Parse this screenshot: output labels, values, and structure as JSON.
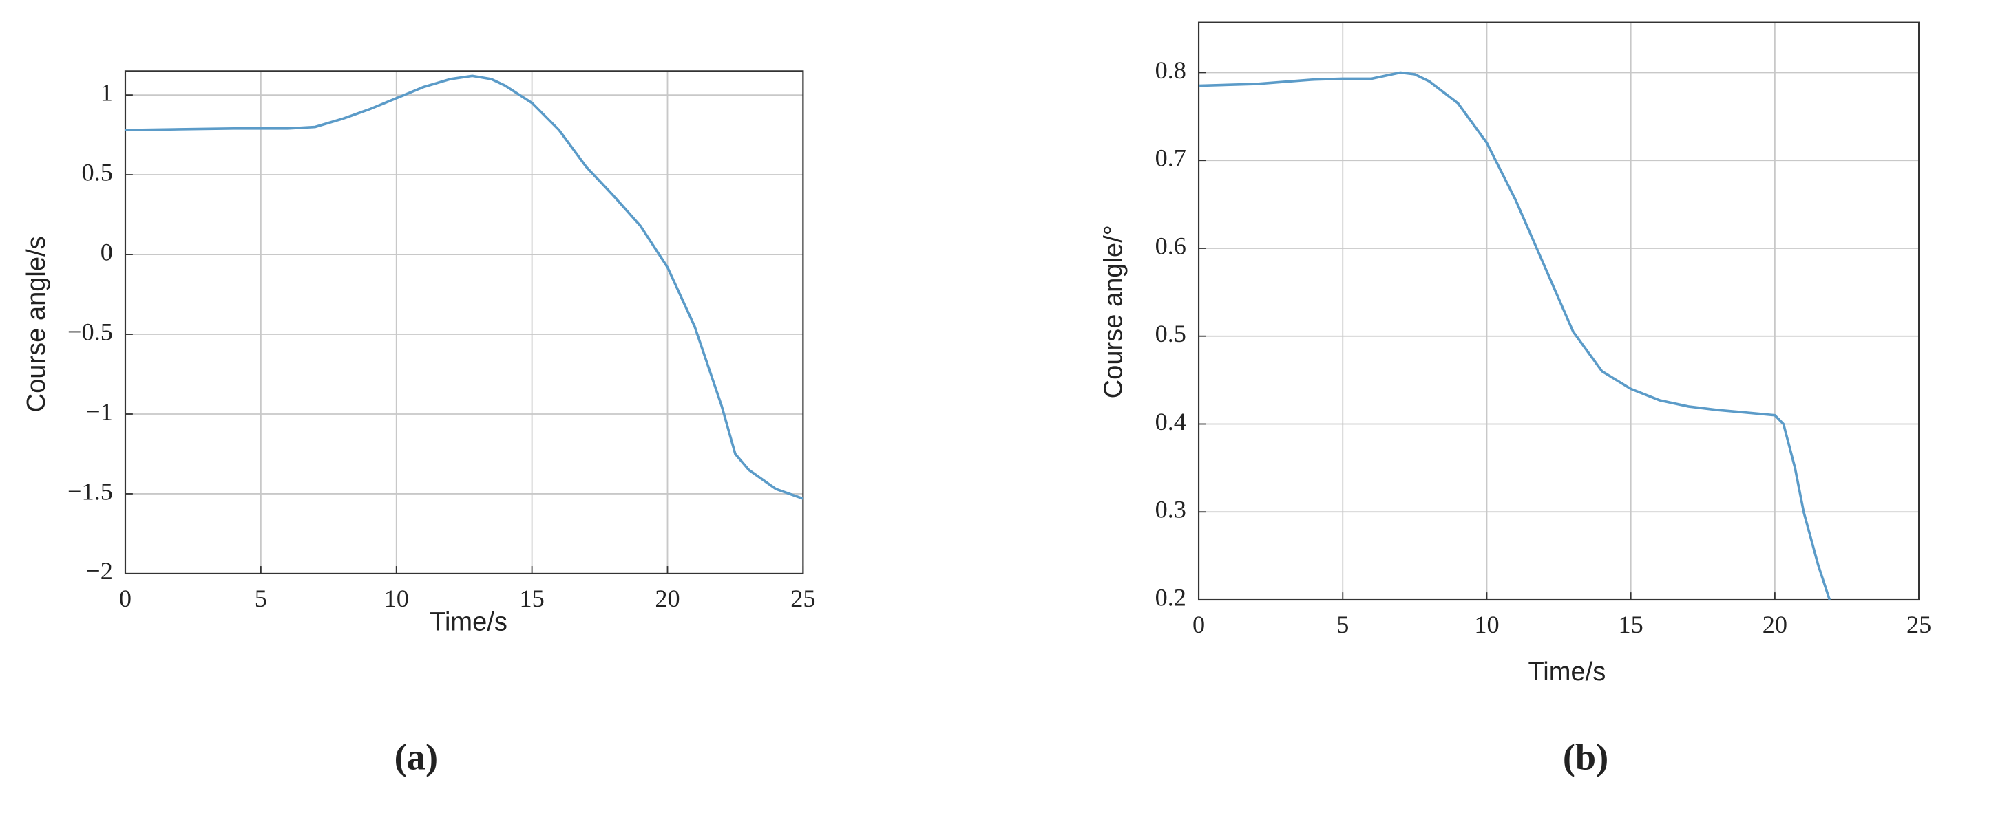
{
  "chart_data": [
    {
      "type": "line",
      "panel_label": "(a)",
      "x_label": "Time/s",
      "y_label": "Course angle/s",
      "xlim": [
        0,
        25
      ],
      "ylim": [
        -2,
        1.15
      ],
      "xticks": [
        0,
        5,
        10,
        15,
        20,
        25
      ],
      "yticks": [
        {
          "value": -2,
          "label": "−2"
        },
        {
          "value": -1.5,
          "label": "−1.5"
        },
        {
          "value": -1,
          "label": "−1"
        },
        {
          "value": -0.5,
          "label": "−0.5"
        },
        0,
        0.5,
        1
      ],
      "grid": true,
      "x": [
        0,
        2,
        4,
        6,
        7,
        8,
        9,
        10,
        11,
        12,
        12.8,
        13.5,
        14,
        15,
        16,
        17,
        18,
        19,
        20,
        21,
        22,
        22.5,
        23,
        24,
        25
      ],
      "series": [
        {
          "color": "#5b9bc8",
          "values": [
            0.78,
            0.785,
            0.79,
            0.79,
            0.8,
            0.85,
            0.91,
            0.98,
            1.05,
            1.1,
            1.12,
            1.1,
            1.06,
            0.95,
            0.78,
            0.55,
            0.37,
            0.18,
            -0.08,
            -0.45,
            -0.95,
            -1.25,
            -1.35,
            -1.47,
            -1.53
          ]
        }
      ]
    },
    {
      "type": "line",
      "panel_label": "(b)",
      "x_label": "Time/s",
      "y_label": "Course angle/°",
      "xlim": [
        0,
        25
      ],
      "ylim": [
        0.2,
        0.857
      ],
      "xticks": [
        0,
        5,
        10,
        15,
        20,
        25
      ],
      "yticks": [
        0.2,
        0.3,
        0.4,
        0.5,
        0.6,
        0.7,
        0.8
      ],
      "grid": true,
      "x": [
        0,
        2,
        4,
        5,
        6,
        7,
        7.5,
        8,
        9,
        10,
        11,
        12,
        13,
        14,
        15,
        16,
        17,
        18,
        19,
        20,
        20.3,
        20.7,
        21,
        21.5,
        21.9
      ],
      "series": [
        {
          "color": "#5b9bc8",
          "values": [
            0.785,
            0.787,
            0.792,
            0.793,
            0.793,
            0.8,
            0.798,
            0.79,
            0.765,
            0.72,
            0.655,
            0.58,
            0.505,
            0.46,
            0.44,
            0.427,
            0.42,
            0.416,
            0.413,
            0.41,
            0.4,
            0.35,
            0.3,
            0.24,
            0.2
          ]
        }
      ]
    }
  ]
}
